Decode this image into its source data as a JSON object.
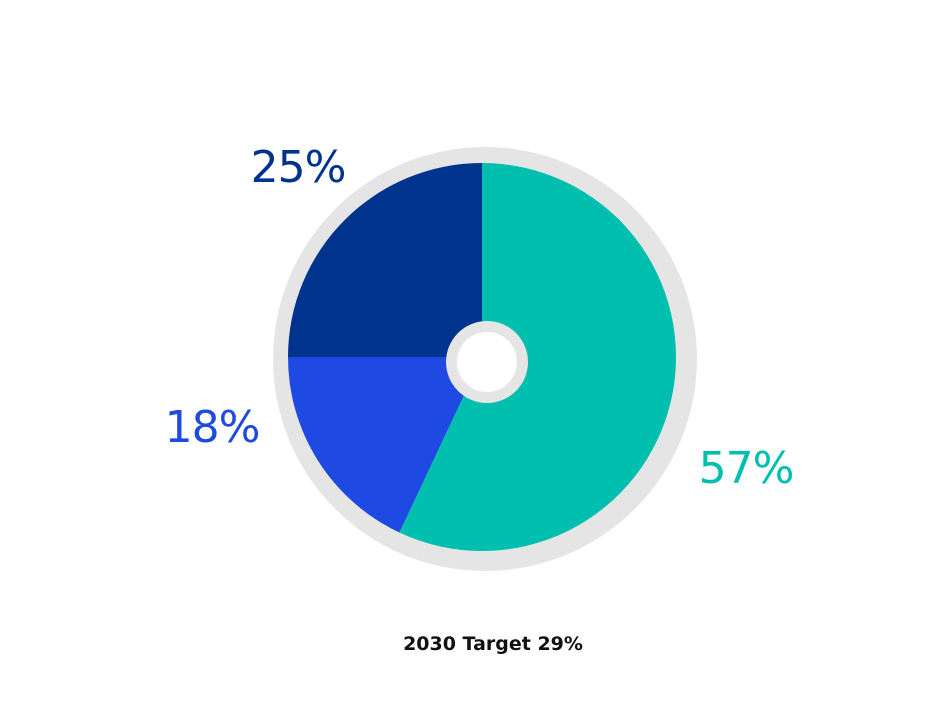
{
  "chart_data": {
    "type": "pie",
    "style": "pie with light gray outer ring and small center hole",
    "start": "top, clockwise",
    "slices": [
      {
        "label": "57%",
        "value": 57,
        "color": "#00BFAE"
      },
      {
        "label": "18%",
        "value": 18,
        "color": "#1E49E2"
      },
      {
        "label": "25%",
        "value": 25,
        "color": "#00338D"
      }
    ],
    "ring_color": "#E5E5E5",
    "caption": "2030 Target 29%"
  }
}
